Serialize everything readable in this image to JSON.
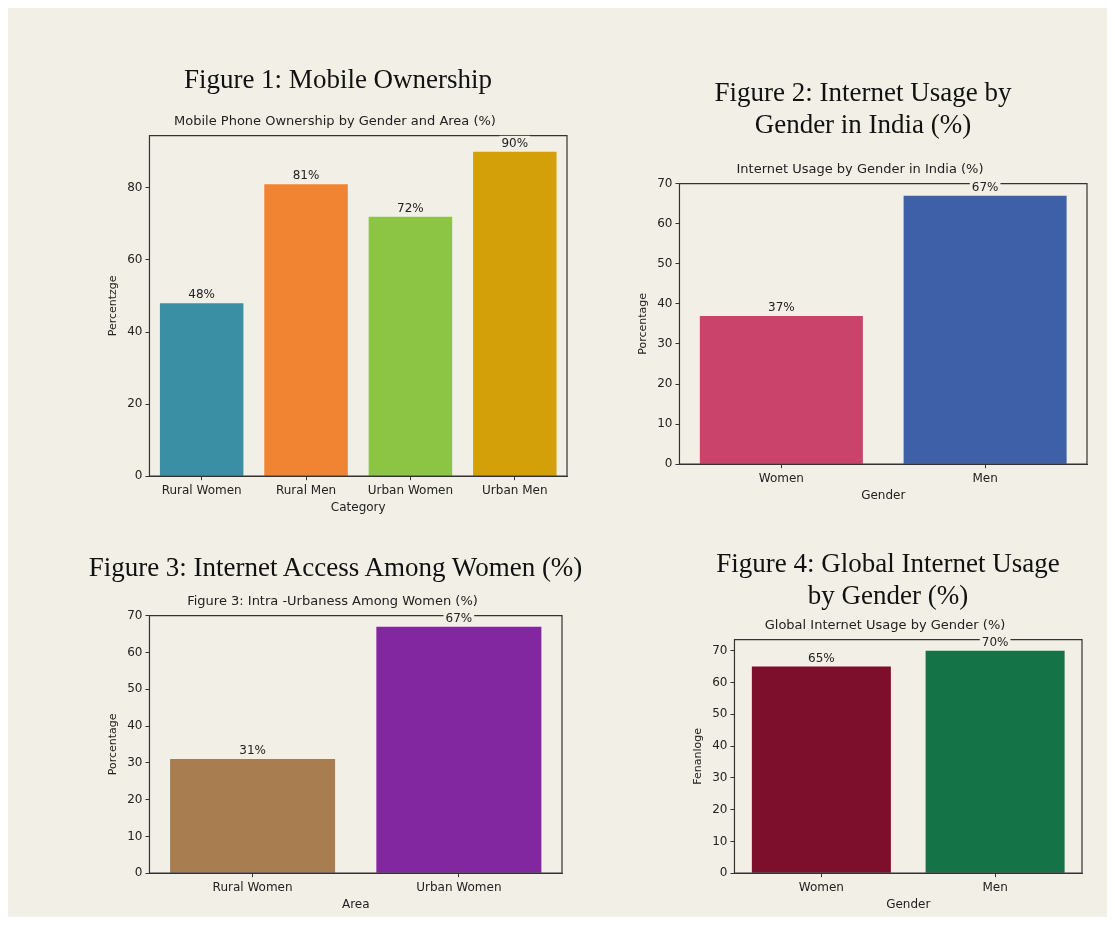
{
  "chart_data": [
    {
      "type": "bar",
      "title": "Figure 1: Mobile Ownership",
      "subtitle": "Mobile Phone Ownership by Gender and Area (%)",
      "xlabel": "Category",
      "ylabel": "Percentzge",
      "categories": [
        "Rural Women",
        "Rural Men",
        "Urban Women",
        "Urban Men"
      ],
      "values": [
        48,
        81,
        72,
        90
      ],
      "colors": [
        "#3a8fa5",
        "#f08432",
        "#8cc443",
        "#d4a00a"
      ],
      "value_labels": [
        "48%",
        "81%",
        "72%",
        "90%"
      ],
      "ylim": [
        0,
        94.5
      ],
      "yticks": [
        0,
        20,
        40,
        60,
        80
      ],
      "grid": false,
      "legend": false
    },
    {
      "type": "bar",
      "title": "Figure 2: Internet Usage by Gender in India (%)",
      "subtitle": "Internet Usage by Gender in India (%)",
      "xlabel": "Gender",
      "ylabel": "Porcentage",
      "categories": [
        "Women",
        "Men"
      ],
      "values": [
        37,
        67
      ],
      "colors": [
        "#c9436a",
        "#3e60a8"
      ],
      "value_labels": [
        "37%",
        "67%"
      ],
      "ylim": [
        0,
        70
      ],
      "yticks": [
        0,
        10,
        20,
        30,
        40,
        50,
        60,
        70
      ],
      "grid": false,
      "legend": false
    },
    {
      "type": "bar",
      "title": "Figure 3: Internet Access Among Women (%)",
      "subtitle": "Figure 3: Intra -Urbaness Among Women (%)",
      "xlabel": "Area",
      "ylabel": "Porcentage",
      "categories": [
        "Rural Women",
        "Urban Women"
      ],
      "values": [
        31,
        67
      ],
      "colors": [
        "#a87d50",
        "#8227a0"
      ],
      "value_labels": [
        "31%",
        "67%"
      ],
      "ylim": [
        0,
        70
      ],
      "yticks": [
        0,
        10,
        20,
        30,
        40,
        50,
        60,
        70
      ],
      "grid": false,
      "legend": false
    },
    {
      "type": "bar",
      "title": "Figure 4: Global Internet Usage by Gender (%)",
      "subtitle": "Global Internet Usage by Gender (%)",
      "xlabel": "Gender",
      "ylabel": "Fenanloge",
      "categories": [
        "Women",
        "Men"
      ],
      "values": [
        65,
        70
      ],
      "colors": [
        "#7d0f2c",
        "#157447"
      ],
      "value_labels": [
        "65%",
        "70%"
      ],
      "ylim": [
        0,
        73.5
      ],
      "yticks": [
        0,
        10,
        20,
        30,
        40,
        50,
        60,
        70
      ],
      "grid": false,
      "legend": false
    }
  ]
}
